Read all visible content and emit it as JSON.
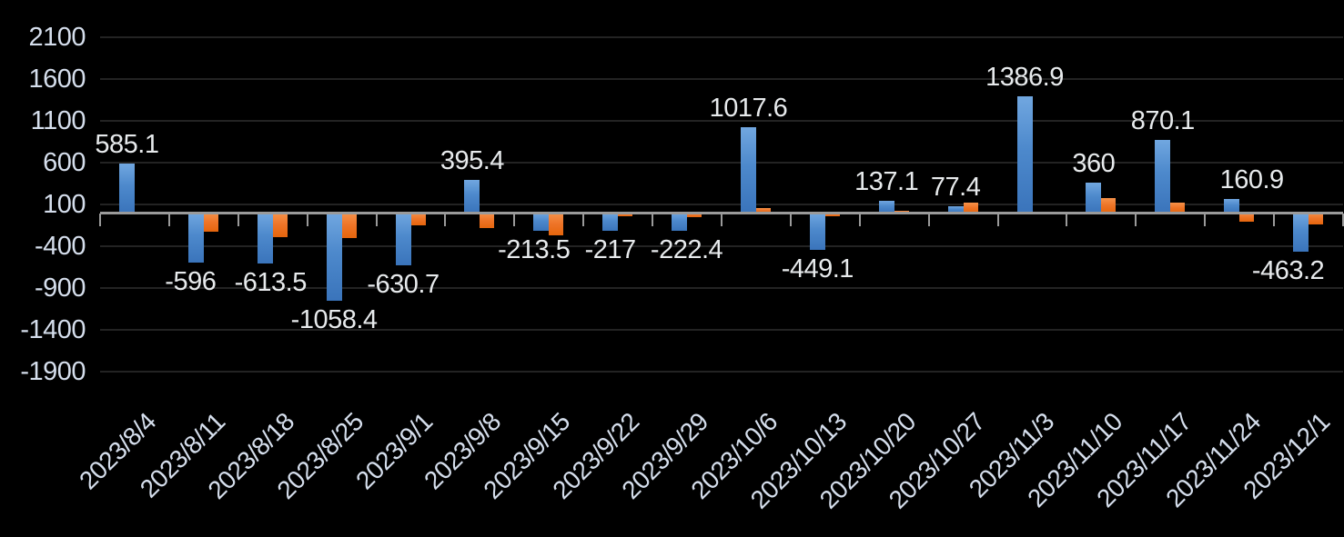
{
  "chart_data": {
    "type": "bar",
    "title": "",
    "legend_position": "none",
    "grid": true,
    "categories": [
      "2023/8/4",
      "2023/8/11",
      "2023/8/18",
      "2023/8/25",
      "2023/9/1",
      "2023/9/8",
      "2023/9/15",
      "2023/9/22",
      "2023/9/29",
      "2023/10/6",
      "2023/10/13",
      "2023/10/20",
      "2023/10/27",
      "2023/11/3",
      "2023/11/10",
      "2023/11/17",
      "2023/11/24",
      "2023/12/1"
    ],
    "series": [
      {
        "name": "series-1-blue",
        "color": "#5b9bd5",
        "values": [
          585.1,
          -596,
          -613.5,
          -1058.4,
          -630.7,
          395.4,
          -213.5,
          -217,
          -222.4,
          1017.6,
          -449.1,
          137.1,
          77.4,
          1386.9,
          360,
          870.1,
          160.9,
          -463.2
        ],
        "data_labels": [
          "585.1",
          "-596",
          "-613.5",
          "-1058.4",
          "-630.7",
          "395.4",
          "-213.5",
          "-217",
          "-222.4",
          "1017.6",
          "-449.1",
          "137.1",
          "77.4",
          "1386.9",
          "360",
          "870.1",
          "160.9",
          "-463.2"
        ]
      },
      {
        "name": "series-2-orange",
        "color": "#ed7d31",
        "values": [
          -25,
          -230,
          -290,
          -300,
          -150,
          -190,
          -270,
          -45,
          -50,
          50,
          -40,
          20,
          125,
          -25,
          175,
          120,
          -105,
          -140
        ],
        "data_labels": []
      }
    ],
    "y_axis": {
      "min": -1900,
      "max": 2100,
      "step": 500,
      "ticks": [
        2100,
        1600,
        1100,
        600,
        100,
        -400,
        -900,
        -1400,
        -1900
      ]
    },
    "x_axis": {
      "label_rotation_deg": -45
    },
    "colors": {
      "background": "#000000",
      "gridline": "#232323",
      "axis_line": "#9a9a9a",
      "axis_text": "#d5deec",
      "data_label_text": "#e7eaec"
    }
  }
}
